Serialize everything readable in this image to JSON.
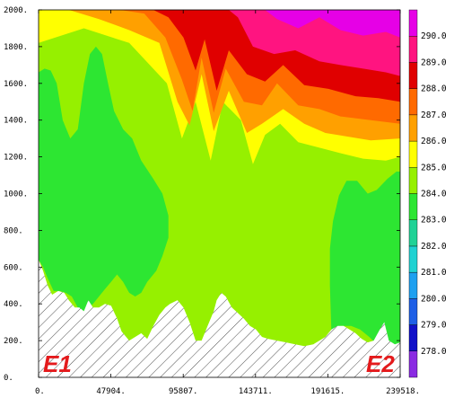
{
  "chart_data": {
    "type": "contour",
    "title": "",
    "xlabel": "",
    "ylabel": "",
    "xlim": [
      0,
      239518
    ],
    "ylim": [
      0,
      2000
    ],
    "x_ticks": [
      0,
      47904,
      95807,
      143711,
      191615,
      239518
    ],
    "x_tick_labels": [
      "0.",
      "47904.",
      "95807.",
      "143711.",
      "191615.",
      "239518."
    ],
    "y_ticks": [
      0,
      200,
      400,
      600,
      800,
      1000,
      1200,
      1400,
      1600,
      1800,
      2000
    ],
    "y_tick_labels": [
      "0.",
      "200.",
      "400.",
      "600.",
      "800.",
      "1000.",
      "1200.",
      "1400.",
      "1600.",
      "1800.",
      "2000."
    ],
    "colorbar": {
      "levels": [
        278.0,
        279.0,
        280.0,
        281.0,
        282.0,
        283.0,
        284.0,
        285.0,
        286.0,
        287.0,
        288.0,
        289.0,
        290.0
      ],
      "labels": [
        "278.0",
        "279.0",
        "280.0",
        "281.0",
        "282.0",
        "283.0",
        "284.0",
        "285.0",
        "286.0",
        "287.0",
        "288.0",
        "289.0",
        "290.0"
      ],
      "colors": [
        "#8a2be2",
        "#1010c8",
        "#1e5fe6",
        "#1ea0f0",
        "#20d2d2",
        "#20d296",
        "#2de632",
        "#96f000",
        "#ffff00",
        "#ffa000",
        "#ff6a00",
        "#e00000",
        "#ff1480",
        "#e600e6"
      ]
    },
    "contour_bands": [
      {
        "level_min": 283.0,
        "color": "#2de632",
        "boundary": [
          [
            0,
            1660
          ],
          [
            4000,
            1680
          ],
          [
            8000,
            1670
          ],
          [
            12000,
            1600
          ],
          [
            16000,
            1400
          ],
          [
            21000,
            1300
          ],
          [
            26000,
            1350
          ],
          [
            30000,
            1600
          ],
          [
            34000,
            1760
          ],
          [
            38000,
            1800
          ],
          [
            42000,
            1760
          ],
          [
            46000,
            1600
          ],
          [
            50000,
            1450
          ],
          [
            56000,
            1350
          ],
          [
            62000,
            1300
          ],
          [
            68000,
            1180
          ],
          [
            76000,
            1080
          ],
          [
            82000,
            1000
          ],
          [
            86000,
            880
          ],
          [
            86000,
            760
          ],
          [
            82000,
            660
          ],
          [
            78000,
            580
          ],
          [
            72000,
            520
          ],
          [
            68000,
            460
          ],
          [
            64000,
            440
          ],
          [
            60000,
            460
          ],
          [
            56000,
            520
          ],
          [
            52000,
            560
          ],
          [
            48000,
            520
          ],
          [
            44000,
            480
          ],
          [
            40000,
            440
          ],
          [
            36000,
            400
          ],
          [
            30000,
            360
          ],
          [
            26000,
            380
          ],
          [
            22000,
            440
          ],
          [
            18000,
            460
          ],
          [
            14000,
            470
          ],
          [
            10000,
            470
          ],
          [
            6000,
            540
          ],
          [
            3000,
            600
          ],
          [
            0,
            640
          ]
        ]
      },
      {
        "level_min": 283.0,
        "color": "#2de632",
        "boundary": [
          [
            194000,
            240
          ],
          [
            193000,
            500
          ],
          [
            193000,
            700
          ],
          [
            195000,
            850
          ],
          [
            199000,
            990
          ],
          [
            204000,
            1070
          ],
          [
            211000,
            1070
          ],
          [
            218000,
            1000
          ],
          [
            224000,
            1020
          ],
          [
            231000,
            1080
          ],
          [
            237000,
            1120
          ],
          [
            239518,
            1120
          ],
          [
            239518,
            180
          ],
          [
            234000,
            160
          ],
          [
            228000,
            150
          ],
          [
            224000,
            180
          ],
          [
            219000,
            220
          ],
          [
            213000,
            260
          ],
          [
            207000,
            280
          ],
          [
            200000,
            280
          ]
        ]
      }
    ],
    "terrain": {
      "description": "hatched terrain below surface",
      "surface": [
        [
          0,
          640
        ],
        [
          3000,
          580
        ],
        [
          6000,
          500
        ],
        [
          9000,
          450
        ],
        [
          13000,
          470
        ],
        [
          17000,
          460
        ],
        [
          20000,
          420
        ],
        [
          24000,
          380
        ],
        [
          27000,
          380
        ],
        [
          30000,
          360
        ],
        [
          33000,
          420
        ],
        [
          36000,
          380
        ],
        [
          40000,
          380
        ],
        [
          44000,
          400
        ],
        [
          48000,
          390
        ],
        [
          52000,
          320
        ],
        [
          55000,
          250
        ],
        [
          60000,
          200
        ],
        [
          64000,
          220
        ],
        [
          68000,
          240
        ],
        [
          72000,
          210
        ],
        [
          76000,
          280
        ],
        [
          80000,
          340
        ],
        [
          84000,
          380
        ],
        [
          87000,
          400
        ],
        [
          92000,
          420
        ],
        [
          96000,
          380
        ],
        [
          100000,
          300
        ],
        [
          104000,
          200
        ],
        [
          108000,
          200
        ],
        [
          112000,
          280
        ],
        [
          116000,
          360
        ],
        [
          118000,
          420
        ],
        [
          121000,
          460
        ],
        [
          124000,
          440
        ],
        [
          128000,
          380
        ],
        [
          132000,
          350
        ],
        [
          136000,
          320
        ],
        [
          140000,
          280
        ],
        [
          144000,
          260
        ],
        [
          148000,
          220
        ],
        [
          152000,
          210
        ],
        [
          158000,
          200
        ],
        [
          164000,
          190
        ],
        [
          170000,
          180
        ],
        [
          176000,
          170
        ],
        [
          182000,
          180
        ],
        [
          186000,
          200
        ],
        [
          190000,
          220
        ],
        [
          194000,
          260
        ],
        [
          198000,
          280
        ],
        [
          202000,
          280
        ],
        [
          206000,
          260
        ],
        [
          210000,
          240
        ],
        [
          214000,
          210
        ],
        [
          218000,
          190
        ],
        [
          222000,
          200
        ],
        [
          226000,
          260
        ],
        [
          229000,
          300
        ],
        [
          232000,
          200
        ],
        [
          236000,
          180
        ],
        [
          239518,
          190
        ]
      ]
    },
    "annotations": [
      {
        "text": "E1",
        "x": 4000,
        "y": 30,
        "position": "bottom-left"
      },
      {
        "text": "E2",
        "x": 220000,
        "y": 30,
        "position": "bottom-right"
      }
    ],
    "grid": false,
    "legend": "colorbar-right"
  }
}
